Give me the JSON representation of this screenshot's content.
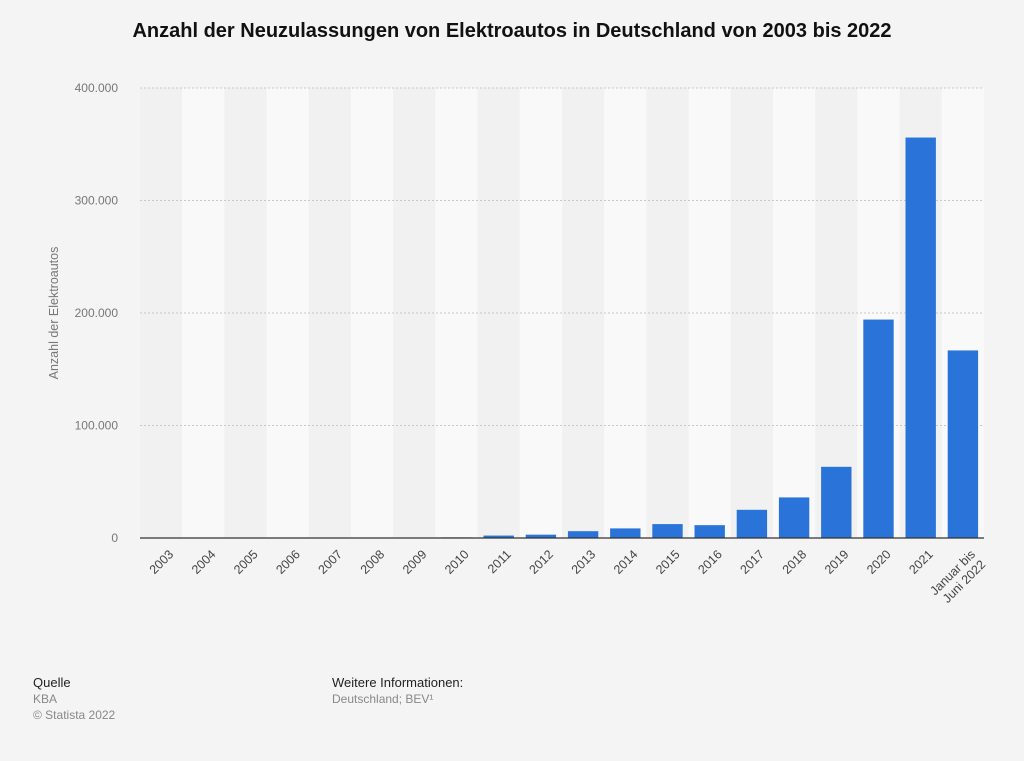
{
  "chart_data": {
    "type": "bar",
    "title": "Anzahl der Neuzulassungen von Elektroautos in Deutschland von 2003 bis 2022",
    "ylabel": "Anzahl der Elektroautos",
    "xlabel": "",
    "categories": [
      "2003",
      "2004",
      "2005",
      "2006",
      "2007",
      "2008",
      "2009",
      "2010",
      "2011",
      "2012",
      "2013",
      "2014",
      "2015",
      "2016",
      "2017",
      "2018",
      "2019",
      "2020",
      "2021",
      "Januar bis Juni 2022"
    ],
    "category_lines": [
      [
        "2003"
      ],
      [
        "2004"
      ],
      [
        "2005"
      ],
      [
        "2006"
      ],
      [
        "2007"
      ],
      [
        "2008"
      ],
      [
        "2009"
      ],
      [
        "2010"
      ],
      [
        "2011"
      ],
      [
        "2012"
      ],
      [
        "2013"
      ],
      [
        "2014"
      ],
      [
        "2015"
      ],
      [
        "2016"
      ],
      [
        "2017"
      ],
      [
        "2018"
      ],
      [
        "2019"
      ],
      [
        "2020"
      ],
      [
        "2021"
      ],
      [
        "Januar bis",
        "Juni 2022"
      ]
    ],
    "values": [
      0,
      19,
      47,
      19,
      8,
      36,
      162,
      541,
      2154,
      2956,
      6051,
      8522,
      12363,
      11410,
      25056,
      36062,
      63281,
      194163,
      355961,
      166727
    ],
    "ylim": [
      0,
      400000
    ],
    "yticks": [
      0,
      100000,
      200000,
      300000,
      400000
    ],
    "ytick_labels": [
      "0",
      "100.000",
      "200.000",
      "300.000",
      "400.000"
    ],
    "grid": true,
    "bar_color": "#2a73d9"
  },
  "footer": {
    "source_heading": "Quelle",
    "source": "KBA",
    "copyright": "© Statista 2022",
    "info_heading": "Weitere Informationen:",
    "info": "Deutschland; BEV¹"
  }
}
